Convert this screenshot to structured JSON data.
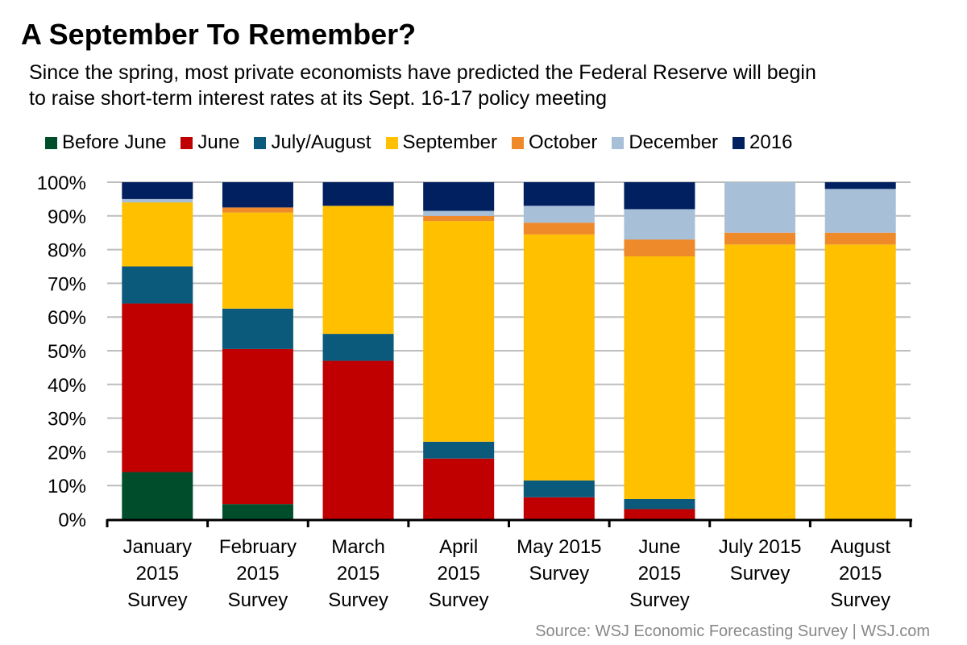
{
  "header": {
    "title": "A September To Remember?",
    "subtitle_line1": "Since the spring, most private economists have predicted the Federal Reserve will begin",
    "subtitle_line2": "to raise short-term interest rates at its Sept. 16-17 policy meeting"
  },
  "source": "Source: WSJ Economic Forecasting Survey  |  WSJ.com",
  "chart_data": {
    "type": "bar",
    "stacked": true,
    "title": "A September To Remember?",
    "xlabel": "",
    "ylabel": "",
    "ylim": [
      0,
      100
    ],
    "yticks": [
      "0%",
      "10%",
      "20%",
      "30%",
      "40%",
      "50%",
      "60%",
      "70%",
      "80%",
      "90%",
      "100%"
    ],
    "grid": true,
    "legend_position": "top",
    "categories": [
      [
        "January",
        "2015",
        "Survey"
      ],
      [
        "February",
        "2015",
        "Survey"
      ],
      [
        "March",
        "2015",
        "Survey"
      ],
      [
        "April",
        "2015",
        "Survey"
      ],
      [
        "May 2015",
        "Survey"
      ],
      [
        "June",
        "2015",
        "Survey"
      ],
      [
        "July 2015",
        "Survey"
      ],
      [
        "August",
        "2015",
        "Survey"
      ]
    ],
    "series": [
      {
        "name": "Before June",
        "color": "#004d2c",
        "values": [
          14,
          4.5,
          0,
          0,
          0,
          0,
          0,
          0
        ]
      },
      {
        "name": "June",
        "color": "#c00000",
        "values": [
          50,
          46,
          47,
          18,
          6.5,
          3,
          0,
          0
        ]
      },
      {
        "name": "July/August",
        "color": "#0b5a7c",
        "values": [
          11,
          12,
          8,
          5,
          5,
          3,
          0,
          0
        ]
      },
      {
        "name": "September",
        "color": "#ffc000",
        "values": [
          19,
          28.5,
          38,
          65.5,
          73,
          72,
          81.5,
          81.5
        ]
      },
      {
        "name": "October",
        "color": "#ee8a2a",
        "values": [
          0,
          1.5,
          0,
          1.5,
          3.5,
          5,
          3.5,
          3.5
        ]
      },
      {
        "name": "December",
        "color": "#a8bfd8",
        "values": [
          1,
          0,
          0,
          1.5,
          5,
          9,
          15,
          13
        ]
      },
      {
        "name": "2016",
        "color": "#002060",
        "values": [
          5,
          7.5,
          7,
          8.5,
          7,
          8,
          0,
          2
        ]
      }
    ]
  }
}
